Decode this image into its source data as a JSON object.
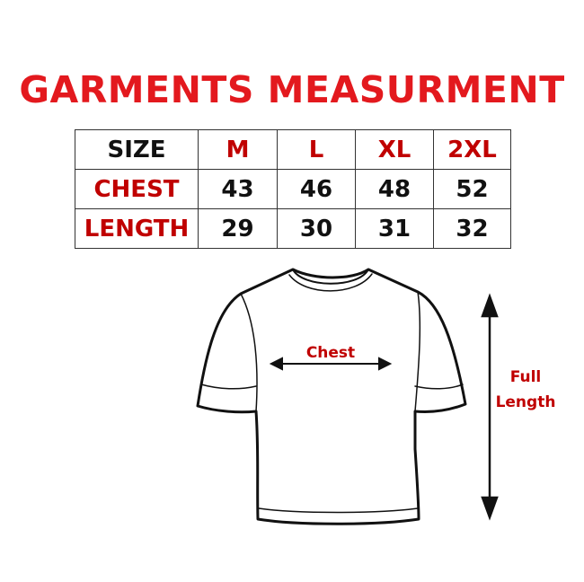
{
  "title": "GARMENTS MEASURMENT",
  "table": {
    "corner": "SIZE",
    "sizes": [
      "M",
      "L",
      "XL",
      "2XL"
    ],
    "rows": [
      {
        "label": "CHEST",
        "values": [
          "43",
          "46",
          "48",
          "52"
        ]
      },
      {
        "label": "LENGTH",
        "values": [
          "29",
          "30",
          "31",
          "32"
        ]
      }
    ]
  },
  "diagram": {
    "chest_label": "Chest",
    "length_label_1": "Full",
    "length_label_2": "Length"
  },
  "colors": {
    "title": "#e3191e",
    "labels": "#c00000"
  }
}
